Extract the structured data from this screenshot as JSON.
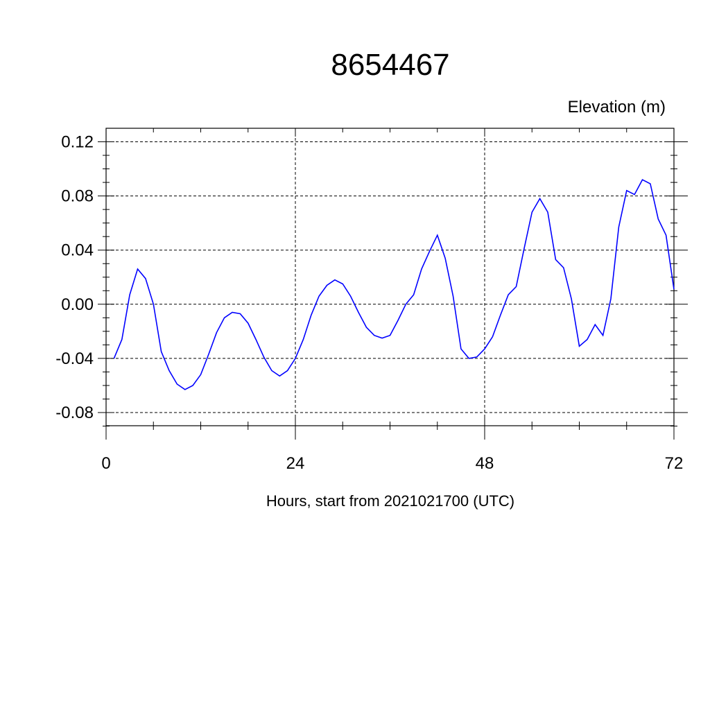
{
  "chart_data": {
    "type": "line",
    "title": "8654467",
    "subtitle": "Elevation (m)",
    "xlabel": "Hours, start from 2021021700 (UTC)",
    "ylabel": "",
    "xlim": [
      0,
      72
    ],
    "ylim": [
      -0.09,
      0.12
    ],
    "x_ticks": [
      0,
      24,
      48,
      72
    ],
    "x_tick_labels": [
      "0",
      "24",
      "48",
      "72"
    ],
    "y_ticks": [
      -0.08,
      -0.04,
      0.0,
      0.04,
      0.08,
      0.12
    ],
    "y_tick_labels": [
      "-0.08",
      "-0.04",
      "0.00",
      "0.04",
      "0.08",
      "0.12"
    ],
    "grid": true,
    "series_color": "#0000ff",
    "series": [
      {
        "x": [
          1,
          2,
          3,
          4,
          5,
          6,
          7,
          8,
          9,
          10,
          11,
          12,
          13,
          14,
          15,
          16,
          17,
          18,
          19,
          20,
          21,
          22,
          23,
          24,
          25,
          26,
          27,
          28,
          29,
          30,
          31,
          32,
          33,
          34,
          35,
          36,
          37,
          38,
          39,
          40,
          41,
          42,
          43,
          44,
          45,
          46,
          47,
          48,
          49,
          50,
          51,
          52,
          53,
          54,
          55,
          56,
          57,
          58,
          59,
          60,
          61,
          62,
          63,
          64,
          65,
          66,
          67,
          68,
          69,
          70,
          71,
          72
        ],
        "values": [
          -0.04,
          -0.026,
          0.007,
          0.026,
          0.019,
          0.0,
          -0.035,
          -0.049,
          -0.059,
          -0.063,
          -0.06,
          -0.052,
          -0.037,
          -0.021,
          -0.01,
          -0.006,
          -0.007,
          -0.014,
          -0.026,
          -0.039,
          -0.049,
          -0.053,
          -0.049,
          -0.04,
          -0.026,
          -0.008,
          0.006,
          0.014,
          0.018,
          0.015,
          0.006,
          -0.006,
          -0.017,
          -0.023,
          -0.025,
          -0.023,
          -0.012,
          0.0,
          0.007,
          0.026,
          0.039,
          0.051,
          0.034,
          0.006,
          -0.033,
          -0.04,
          -0.039,
          -0.033,
          -0.024,
          -0.008,
          0.007,
          0.013,
          0.041,
          0.068,
          0.078,
          0.068,
          0.033,
          0.027,
          0.004,
          -0.031,
          -0.026,
          -0.015,
          -0.023,
          0.004,
          0.057,
          0.084,
          0.081,
          0.092,
          0.089,
          0.063,
          0.051,
          0.011
        ]
      }
    ]
  }
}
